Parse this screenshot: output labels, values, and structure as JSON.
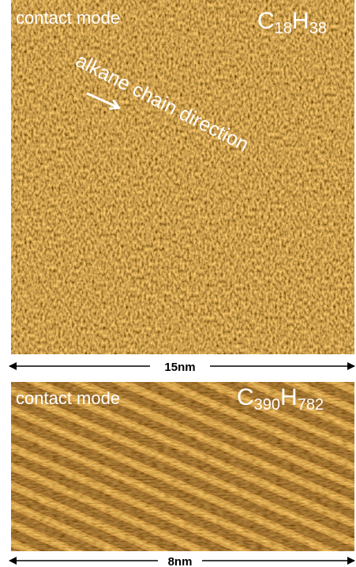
{
  "panels": [
    {
      "mode": "contact mode",
      "formula": [
        "C",
        "18",
        "H",
        "38"
      ],
      "annotation": "alkane chain direction",
      "scale": "15nm"
    },
    {
      "mode": "contact mode",
      "formula": [
        "C",
        "390",
        "H",
        "782"
      ],
      "scale": "8nm"
    }
  ]
}
